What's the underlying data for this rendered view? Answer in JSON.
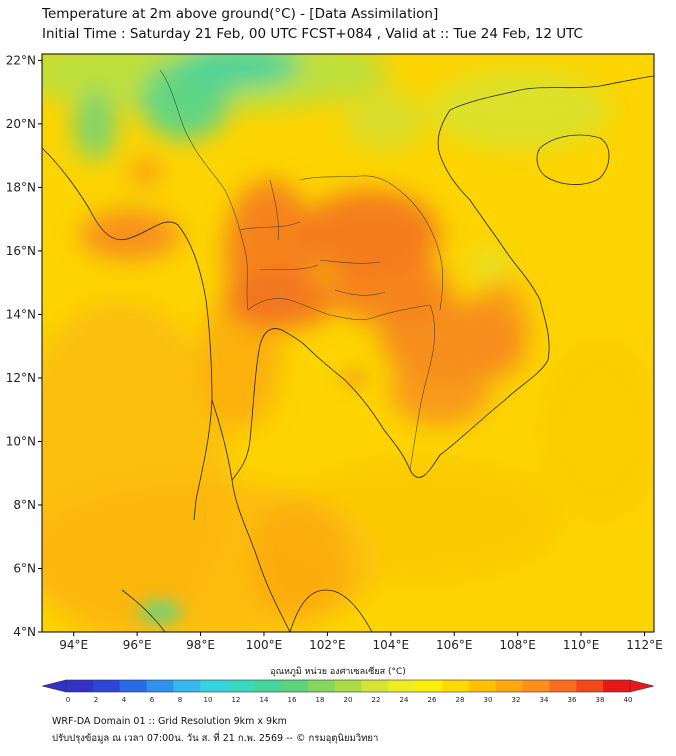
{
  "header": {
    "title": "Temperature at 2m above ground(°C) - [Data Assimilation]",
    "subtitle": "Initial Time : Saturday 21 Feb, 00 UTC FCST+084 , Valid at :: Tue 24 Feb, 12 UTC"
  },
  "map": {
    "lat_ticks": [
      "4°N",
      "6°N",
      "8°N",
      "10°N",
      "12°N",
      "14°N",
      "16°N",
      "18°N",
      "20°N",
      "22°N"
    ],
    "lon_ticks": [
      "94°E",
      "96°E",
      "98°E",
      "100°E",
      "102°E",
      "104°E",
      "106°E",
      "108°E",
      "110°E",
      "112°E"
    ],
    "lat_range": [
      4,
      22.2
    ],
    "lon_range": [
      93,
      112.3
    ]
  },
  "colorbar": {
    "title": "อุณหภูมิ หน่วย องศาเซลเซียส (°C)",
    "labels": [
      "0",
      "2",
      "4",
      "6",
      "8",
      "10",
      "12",
      "14",
      "16",
      "18",
      "20",
      "22",
      "24",
      "26",
      "28",
      "30",
      "32",
      "34",
      "36",
      "38",
      "40"
    ],
    "colors": [
      "#3232c8",
      "#2b46d8",
      "#2a6ae6",
      "#2e92ee",
      "#35b8ee",
      "#36d2e0",
      "#38d8c0",
      "#44d49c",
      "#5ed27c",
      "#84d65e",
      "#acdc44",
      "#d4e434",
      "#eeec22",
      "#fcee08",
      "#ffd900",
      "#ffc000",
      "#ffa70e",
      "#ff8f1a",
      "#f86e1e",
      "#f04818",
      "#e81818"
    ]
  },
  "footer": {
    "line1": "WRF-DA Domain 01 :: Grid Resolution 9km x 9km",
    "line2": "ปรับปรุงข้อมูล ณ เวลา 07:00น. วัน ส. ที่ 21 ก.พ. 2569 -- © กรมอุตุนิยมวิทยา"
  }
}
